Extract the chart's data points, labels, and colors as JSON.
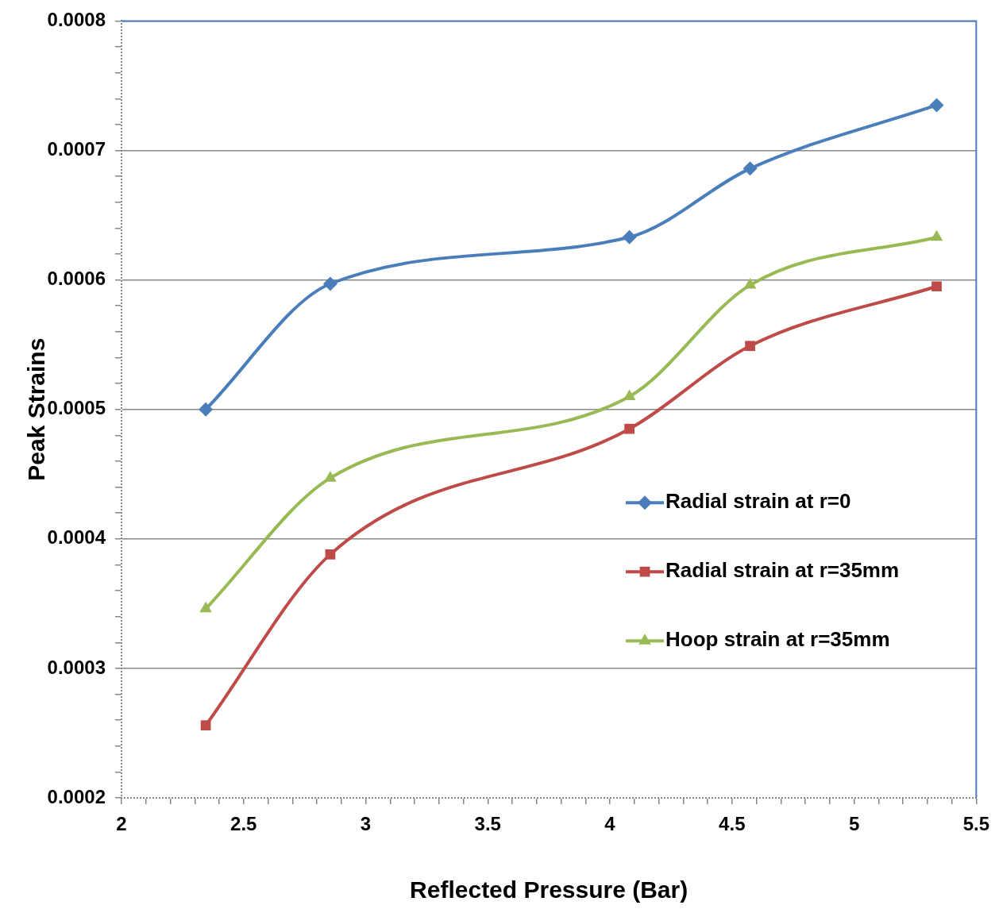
{
  "chart_data": {
    "type": "line",
    "xlabel": "Reflected Pressure (Bar)",
    "ylabel": "Peak Strains",
    "x": [
      2.345,
      2.855,
      4.08,
      4.574,
      5.338
    ],
    "series": [
      {
        "name": "Radial strain at r=0",
        "color": "#4a7ebb",
        "marker": "diamond",
        "values": [
          0.0005,
          0.000597,
          0.000633,
          0.000686,
          0.000735
        ]
      },
      {
        "name": "Radial strain at r=35mm",
        "color": "#be4b48",
        "marker": "square",
        "values": [
          0.000256,
          0.000388,
          0.000485,
          0.000549,
          0.000595
        ]
      },
      {
        "name": "Hoop strain at r=35mm",
        "color": "#98b954",
        "marker": "triangle",
        "values": [
          0.000346,
          0.000447,
          0.00051,
          0.000596,
          0.000633
        ]
      }
    ],
    "xlim": [
      2,
      5.5
    ],
    "xticks": [
      2,
      {
        "value": 2.1,
        "label": null
      },
      {
        "value": 2.2,
        "label": null
      },
      {
        "value": 2.3,
        "label": null
      },
      {
        "value": 2.4,
        "label": null
      },
      2.5,
      {
        "value": 2.6,
        "label": null
      },
      {
        "value": 2.7,
        "label": null
      },
      {
        "value": 2.8,
        "label": null
      },
      {
        "value": 2.9,
        "label": null
      },
      3,
      {
        "value": 3.1,
        "label": null
      },
      {
        "value": 3.2,
        "label": null
      },
      {
        "value": 3.3,
        "label": null
      },
      {
        "value": 3.4,
        "label": null
      },
      3.5,
      {
        "value": 3.6,
        "label": null
      },
      {
        "value": 3.7,
        "label": null
      },
      {
        "value": 3.8,
        "label": null
      },
      {
        "value": 3.9,
        "label": null
      },
      4,
      {
        "value": 4.1,
        "label": null
      },
      {
        "value": 4.2,
        "label": null
      },
      {
        "value": 4.3,
        "label": null
      },
      {
        "value": 4.4,
        "label": null
      },
      4.5,
      {
        "value": 4.6,
        "label": null
      },
      {
        "value": 4.7,
        "label": null
      },
      {
        "value": 4.8,
        "label": null
      },
      {
        "value": 4.9,
        "label": null
      },
      5,
      {
        "value": 5.1,
        "label": null
      },
      {
        "value": 5.2,
        "label": null
      },
      {
        "value": 5.3,
        "label": null
      },
      {
        "value": 5.4,
        "label": null
      },
      5.5
    ],
    "ylim": [
      0.0002,
      0.0008
    ],
    "yticks": [
      {
        "value": 0.0002,
        "label": "0.0002"
      },
      {
        "value": 0.00022,
        "label": null
      },
      {
        "value": 0.00024,
        "label": null
      },
      {
        "value": 0.00026,
        "label": null
      },
      {
        "value": 0.00028,
        "label": null
      },
      {
        "value": 0.0003,
        "label": "0.0003"
      },
      {
        "value": 0.00032,
        "label": null
      },
      {
        "value": 0.00034,
        "label": null
      },
      {
        "value": 0.00036,
        "label": null
      },
      {
        "value": 0.00038,
        "label": null
      },
      {
        "value": 0.0004,
        "label": "0.0004"
      },
      {
        "value": 0.00042,
        "label": null
      },
      {
        "value": 0.00044,
        "label": null
      },
      {
        "value": 0.00046,
        "label": null
      },
      {
        "value": 0.00048,
        "label": null
      },
      {
        "value": 0.0005,
        "label": "0.0005"
      },
      {
        "value": 0.00052,
        "label": null
      },
      {
        "value": 0.00054,
        "label": null
      },
      {
        "value": 0.00056,
        "label": null
      },
      {
        "value": 0.00058,
        "label": null
      },
      {
        "value": 0.0006,
        "label": "0.0006"
      },
      {
        "value": 0.00062,
        "label": null
      },
      {
        "value": 0.00064,
        "label": null
      },
      {
        "value": 0.00066,
        "label": null
      },
      {
        "value": 0.00068,
        "label": null
      },
      {
        "value": 0.0007,
        "label": "0.0007"
      },
      {
        "value": 0.00072,
        "label": null
      },
      {
        "value": 0.00074,
        "label": null
      },
      {
        "value": 0.00076,
        "label": null
      },
      {
        "value": 0.00078,
        "label": null
      },
      {
        "value": 0.0008,
        "label": "0.0008"
      }
    ],
    "grid": "y",
    "legend": "center right",
    "line_style": "solid"
  }
}
